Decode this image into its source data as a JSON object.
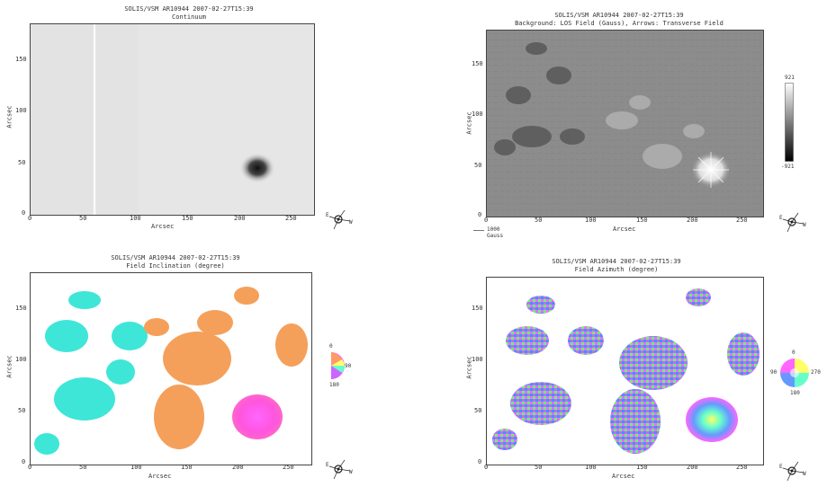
{
  "chart_data": [
    {
      "type": "heatmap",
      "title": "SOLIS/VSM AR10944 2007-02-27T15:39",
      "subtitle": "Continuum",
      "xlabel": "Arcsec",
      "ylabel": "Arcsec",
      "xticks": [
        "0",
        "50",
        "100",
        "150",
        "200",
        "250"
      ],
      "yticks": [
        "0",
        "50",
        "100",
        "150"
      ],
      "xlim": [
        0,
        270
      ],
      "ylim": [
        0,
        180
      ],
      "features": [
        {
          "kind": "sunspot",
          "x": 218,
          "y": 44
        }
      ]
    },
    {
      "type": "heatmap",
      "title": "SOLIS/VSM AR10944 2007-02-27T15:39",
      "subtitle": "Background: LOS Field (Gauss), Arrows: Transverse Field",
      "xlabel": "Arcsec",
      "ylabel": "Arcsec",
      "xticks": [
        "0",
        "50",
        "100",
        "150",
        "200",
        "250"
      ],
      "yticks": [
        "0",
        "50",
        "100",
        "150"
      ],
      "xlim": [
        0,
        270
      ],
      "ylim": [
        0,
        180
      ],
      "colorbar": {
        "max_label": "921",
        "min_label": "-921"
      },
      "legend": "1000 Gauss"
    },
    {
      "type": "heatmap",
      "title": "SOLIS/VSM AR10944 2007-02-27T15:39",
      "subtitle": "Field Inclination (degree)",
      "xlabel": "Arcsec",
      "ylabel": "Arcsec",
      "xticks": [
        "0",
        "50",
        "100",
        "150",
        "200",
        "250"
      ],
      "yticks": [
        "0",
        "50",
        "100",
        "150"
      ],
      "xlim": [
        0,
        270
      ],
      "ylim": [
        0,
        180
      ],
      "colorwheel": {
        "top": "0",
        "right": "90",
        "bottom": "180"
      }
    },
    {
      "type": "heatmap",
      "title": "SOLIS/VSM AR10944 2007-02-27T15:39",
      "subtitle": "Field Azimuth (degree)",
      "xlabel": "Arcsec",
      "ylabel": "Arcsec",
      "xticks": [
        "0",
        "50",
        "100",
        "150",
        "200",
        "250"
      ],
      "yticks": [
        "0",
        "50",
        "100",
        "150"
      ],
      "xlim": [
        0,
        270
      ],
      "ylim": [
        0,
        180
      ],
      "colorwheel": {
        "top": "0",
        "left": "90",
        "right": "270",
        "bottom": "180"
      }
    }
  ],
  "compass": {
    "e": "E",
    "w": "W"
  }
}
